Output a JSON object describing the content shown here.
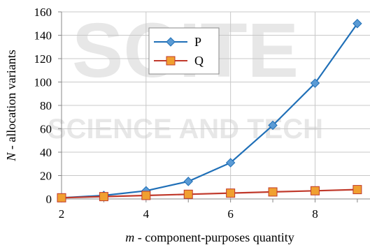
{
  "chart_data": {
    "type": "line",
    "xlabel_var": "m",
    "xlabel_rest": " - component-purposes quantity",
    "ylabel_var": "N",
    "ylabel_rest": " - allocation variants",
    "x_ticks": [
      2,
      4,
      6,
      8
    ],
    "y_ticks": [
      0,
      20,
      40,
      60,
      80,
      100,
      120,
      140,
      160
    ],
    "xlim": [
      2,
      9.3
    ],
    "ylim": [
      0,
      160
    ],
    "grid": true,
    "legend_position": "upper-left-inside",
    "x": [
      2,
      3,
      4,
      5,
      6,
      7,
      8,
      9
    ],
    "series": [
      {
        "name": "P",
        "values": [
          1,
          3,
          7,
          15,
          31,
          63,
          99,
          150
        ],
        "color": "#1f6fb7",
        "marker": "diamond",
        "marker_fill": "#5b9bd5"
      },
      {
        "name": "Q",
        "values": [
          1,
          2,
          3,
          4,
          5,
          6,
          7,
          8
        ],
        "color": "#c0392b",
        "marker": "square",
        "marker_fill": "#f0a030"
      }
    ]
  }
}
